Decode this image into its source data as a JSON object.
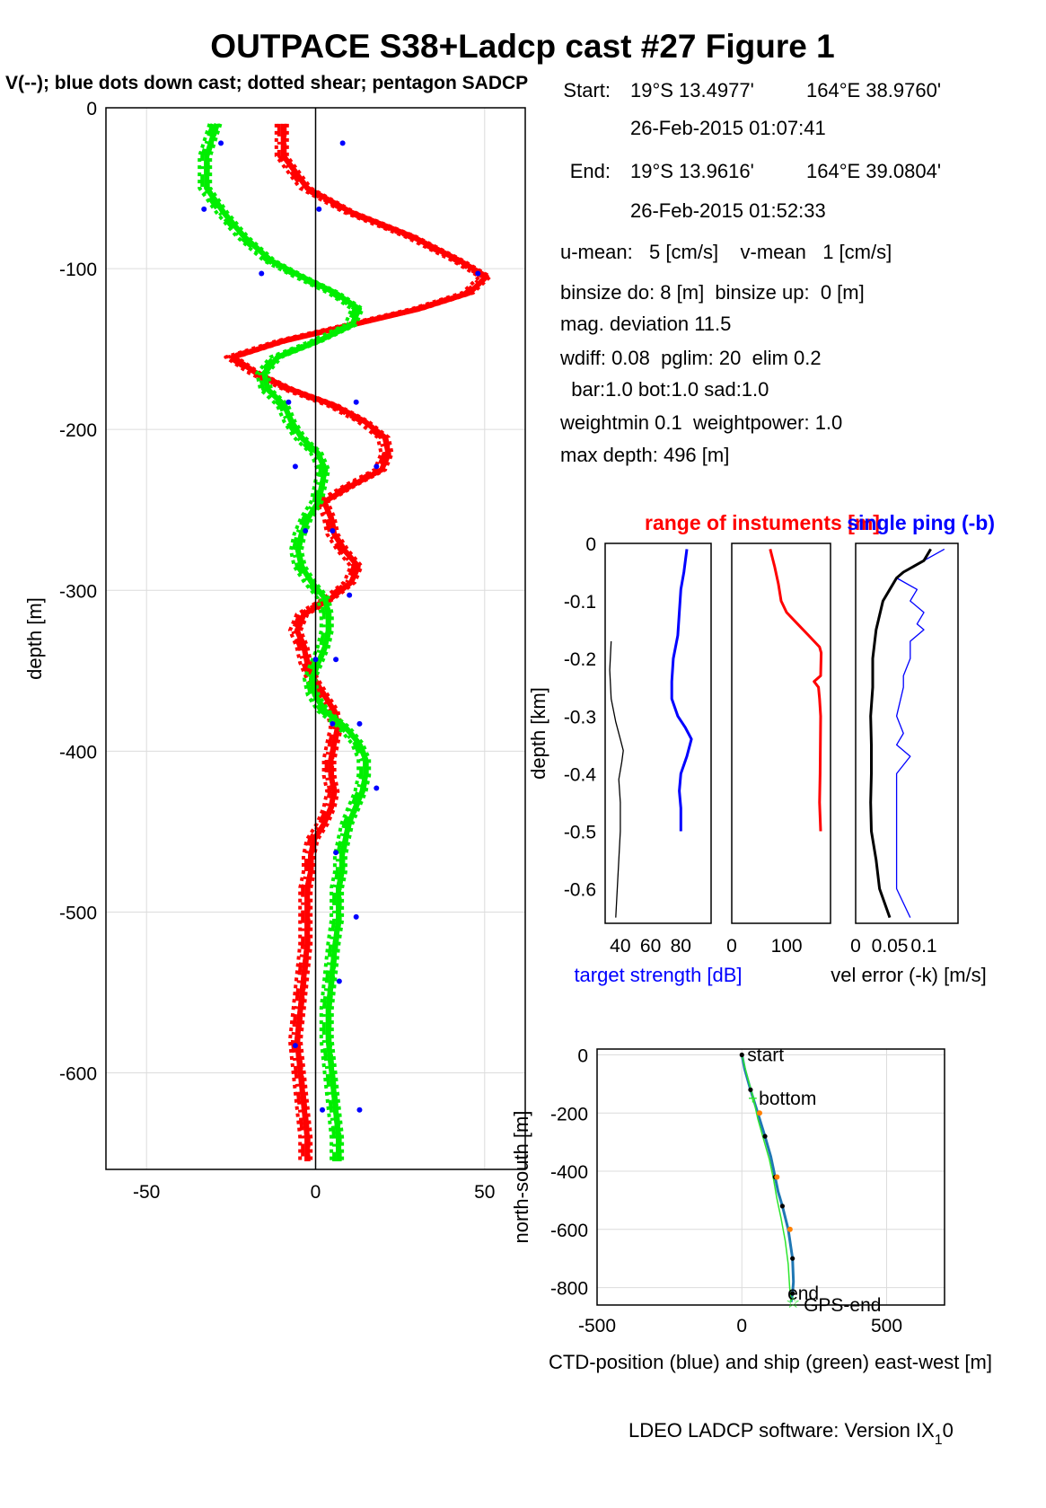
{
  "title": "OUTPACE S38+Ladcp cast #27  Figure 1",
  "subtitle": "V(--); blue dots down cast; dotted shear; pentagon SADCP",
  "info": {
    "start_label": "Start:",
    "start_lat": "19°S 13.4977'",
    "start_lon": "164°E 38.9760'",
    "start_time": "26-Feb-2015 01:07:41",
    "end_label": "End:",
    "end_lat": "19°S 13.9616'",
    "end_lon": "164°E 39.0804'",
    "end_time": "26-Feb-2015 01:52:33",
    "means": "u-mean:   5 [cm/s]    v-mean   1 [cm/s]",
    "binsize": "binsize do: 8 [m]  binsize up:  0 [m]",
    "magdev": "mag. deviation 11.5",
    "wdiff": "wdiff: 0.08  pglim: 20  elim 0.2",
    "bars": "  bar:1.0 bot:1.0 sad:1.0",
    "weights": "weightmin 0.1  weightpower: 1.0",
    "maxdepth": "max depth: 496 [m]"
  },
  "footer": "LDEO LADCP software: Version IX",
  "footer_sub": "1",
  "footer_tail": "0",
  "colors": {
    "red": "#ff0000",
    "green": "#00ee00",
    "blue": "#0000ff",
    "black": "#000000",
    "grid": "#dcdcdc",
    "ctd": "#1f77b4",
    "ship": "#2ee62e"
  },
  "chart_data": [
    {
      "type": "line",
      "id": "velocity-profile",
      "title": "V(--); blue dots down cast; dotted shear; pentagon SADCP",
      "xlabel": "",
      "ylabel": "depth [m]",
      "xlim": [
        -62,
        62
      ],
      "ylim": [
        -660,
        0
      ],
      "xticks": [
        -50,
        0,
        50
      ],
      "yticks": [
        0,
        -100,
        -200,
        -300,
        -400,
        -500,
        -600
      ],
      "grid": true,
      "series": [
        {
          "color": "red",
          "depth": [
            -10,
            -30,
            -50,
            -65,
            -80,
            -95,
            -105,
            -115,
            -125,
            -135,
            -145,
            -155,
            -165,
            -175,
            -185,
            -195,
            -205,
            -215,
            -225,
            -235,
            -245,
            -255,
            -265,
            -275,
            -285,
            -295,
            -305,
            -315,
            -325,
            -335,
            -345,
            -355,
            -365,
            -375,
            -385,
            -395,
            -405,
            -415,
            -425,
            -435,
            -445,
            -455,
            -465,
            -475,
            -485,
            -495,
            -505,
            -520,
            -540,
            -560,
            -580,
            -600,
            -620,
            -640,
            -655
          ],
          "values": [
            -10,
            -10,
            -3,
            10,
            28,
            42,
            50,
            45,
            30,
            10,
            -10,
            -25,
            -18,
            -8,
            5,
            14,
            20,
            21,
            19,
            10,
            2,
            4,
            5,
            8,
            12,
            10,
            4,
            -4,
            -6,
            -4,
            -3,
            -1,
            2,
            5,
            6,
            5,
            4,
            4,
            5,
            4,
            2,
            -1,
            -2,
            -2,
            -3,
            -3,
            -3,
            -3,
            -4,
            -5,
            -6,
            -5,
            -4,
            -3,
            -3
          ]
        },
        {
          "color": "green",
          "depth": [
            -10,
            -30,
            -50,
            -65,
            -80,
            -95,
            -105,
            -115,
            -125,
            -135,
            -145,
            -155,
            -165,
            -175,
            -185,
            -195,
            -205,
            -215,
            -225,
            -235,
            -245,
            -255,
            -265,
            -275,
            -285,
            -295,
            -305,
            -315,
            -325,
            -335,
            -345,
            -355,
            -365,
            -375,
            -385,
            -395,
            -405,
            -415,
            -425,
            -435,
            -445,
            -455,
            -465,
            -475,
            -485,
            -495,
            -505,
            -520,
            -540,
            -560,
            -580,
            -600,
            -620,
            -640,
            -655
          ],
          "values": [
            -30,
            -33,
            -33,
            -28,
            -22,
            -14,
            -5,
            5,
            12,
            10,
            0,
            -12,
            -16,
            -15,
            -10,
            -8,
            -5,
            0,
            2,
            1,
            0,
            -3,
            -5,
            -6,
            -5,
            -2,
            2,
            3,
            3,
            2,
            0,
            -2,
            -1,
            2,
            8,
            12,
            14,
            14,
            13,
            11,
            9,
            8,
            7,
            7,
            6,
            6,
            6,
            5,
            4,
            3,
            3,
            4,
            5,
            6,
            6
          ]
        }
      ],
      "dots": [
        {
          "v": -28,
          "depth": -22
        },
        {
          "v": 8,
          "depth": -22
        },
        {
          "v": -33,
          "depth": -63
        },
        {
          "v": 1,
          "depth": -63
        },
        {
          "v": -16,
          "depth": -103
        },
        {
          "v": 48,
          "depth": -103
        },
        {
          "v": -8,
          "depth": -183
        },
        {
          "v": 12,
          "depth": -183
        },
        {
          "v": -6,
          "depth": -223
        },
        {
          "v": 18,
          "depth": -223
        },
        {
          "v": -3,
          "depth": -263
        },
        {
          "v": 5,
          "depth": -263
        },
        {
          "v": 10,
          "depth": -303
        },
        {
          "v": 6,
          "depth": -343
        },
        {
          "v": 0,
          "depth": -343
        },
        {
          "v": 5,
          "depth": -383
        },
        {
          "v": 13,
          "depth": -383
        },
        {
          "v": 18,
          "depth": -423
        },
        {
          "v": 6,
          "depth": -463
        },
        {
          "v": 12,
          "depth": -503
        },
        {
          "v": 7,
          "depth": -543
        },
        {
          "v": -6,
          "depth": -583
        },
        {
          "v": 13,
          "depth": -623
        },
        {
          "v": 2,
          "depth": -623
        }
      ]
    },
    {
      "type": "line",
      "id": "target-strength",
      "title": "range of instuments [m]",
      "xlabel": "target strength [dB]",
      "ylabel": "depth [km]",
      "xlim": [
        30,
        100
      ],
      "ylim": [
        -0.66,
        0
      ],
      "xticks": [
        40,
        60,
        80
      ],
      "yticks": [
        0,
        -0.1,
        -0.2,
        -0.3,
        -0.4,
        -0.5,
        -0.6
      ],
      "series": [
        {
          "name": "target strength",
          "color": "blue",
          "depth": [
            -0.01,
            -0.05,
            -0.08,
            -0.12,
            -0.16,
            -0.2,
            -0.24,
            -0.27,
            -0.3,
            -0.32,
            -0.34,
            -0.37,
            -0.4,
            -0.43,
            -0.46,
            -0.5
          ],
          "values": [
            84,
            82,
            80,
            79,
            78,
            75,
            74,
            74,
            78,
            83,
            87,
            84,
            80,
            79,
            80,
            80
          ]
        },
        {
          "name": "range",
          "color": "black",
          "depth": [
            -0.17,
            -0.22,
            -0.27,
            -0.31,
            -0.34,
            -0.36,
            -0.38,
            -0.41,
            -0.45,
            -0.5,
            -0.55,
            -0.6,
            -0.65
          ],
          "values": [
            34,
            33,
            34,
            37,
            40,
            42,
            41,
            39,
            40,
            40,
            39,
            38,
            37
          ]
        }
      ]
    },
    {
      "type": "line",
      "id": "range",
      "xlabel": "",
      "xlim": [
        0,
        180
      ],
      "ylim": [
        -0.66,
        0
      ],
      "xticks": [
        0,
        100
      ],
      "series": [
        {
          "color": "red",
          "depth": [
            -0.01,
            -0.04,
            -0.07,
            -0.1,
            -0.12,
            -0.14,
            -0.16,
            -0.18,
            -0.19,
            -0.23,
            -0.24,
            -0.25,
            -0.27,
            -0.3,
            -0.4,
            -0.45,
            -0.5
          ],
          "values": [
            70,
            78,
            85,
            90,
            100,
            120,
            140,
            160,
            163,
            162,
            150,
            158,
            160,
            162,
            161,
            160,
            162
          ]
        }
      ]
    },
    {
      "type": "line",
      "id": "vel-error",
      "title": "single ping (-b)",
      "xlabel": "vel error (-k) [m/s]",
      "xlim": [
        0,
        0.15
      ],
      "ylim": [
        -0.66,
        0
      ],
      "xticks": [
        0,
        0.05,
        0.1
      ],
      "xticklabels": [
        "0",
        "0.05",
        "0.1"
      ],
      "series": [
        {
          "name": "single ping",
          "color": "blue",
          "depth": [
            -0.01,
            -0.03,
            -0.05,
            -0.06,
            -0.08,
            -0.1,
            -0.12,
            -0.14,
            -0.15,
            -0.17,
            -0.2,
            -0.23,
            -0.25,
            -0.3,
            -0.33,
            -0.35,
            -0.37,
            -0.4,
            -0.45,
            -0.5,
            -0.55,
            -0.6,
            -0.65
          ],
          "values": [
            0.13,
            0.1,
            0.07,
            0.06,
            0.09,
            0.08,
            0.1,
            0.09,
            0.1,
            0.08,
            0.08,
            0.07,
            0.07,
            0.06,
            0.07,
            0.06,
            0.08,
            0.06,
            0.06,
            0.06,
            0.06,
            0.06,
            0.08
          ]
        },
        {
          "name": "vel error",
          "color": "black",
          "depth": [
            -0.01,
            -0.03,
            -0.05,
            -0.06,
            -0.08,
            -0.1,
            -0.15,
            -0.2,
            -0.25,
            -0.3,
            -0.35,
            -0.4,
            -0.45,
            -0.5,
            -0.55,
            -0.6,
            -0.65
          ],
          "values": [
            0.11,
            0.1,
            0.07,
            0.06,
            0.05,
            0.04,
            0.03,
            0.025,
            0.025,
            0.022,
            0.023,
            0.023,
            0.022,
            0.023,
            0.03,
            0.035,
            0.05
          ]
        }
      ]
    },
    {
      "type": "line",
      "id": "position",
      "xlabel": "CTD-position (blue) and ship (green) east-west [m]",
      "ylabel": "north-south [m]",
      "xlim": [
        -500,
        700
      ],
      "ylim": [
        -860,
        20
      ],
      "xticks": [
        -500,
        0,
        500
      ],
      "yticks": [
        0,
        -200,
        -400,
        -600,
        -800
      ],
      "annotations": [
        "start",
        "bottom",
        "end",
        "GPS-end"
      ],
      "series": [
        {
          "name": "CTD",
          "color": "ctd",
          "x": [
            0,
            10,
            30,
            55,
            80,
            100,
            115,
            125,
            140,
            160,
            175,
            178,
            175,
            170
          ],
          "y": [
            0,
            -50,
            -120,
            -200,
            -280,
            -350,
            -420,
            -470,
            -520,
            -600,
            -700,
            -780,
            -820,
            -850
          ]
        },
        {
          "name": "ship",
          "color": "ship",
          "x": [
            0,
            15,
            40,
            55,
            75,
            95,
            110,
            120,
            135,
            150,
            160,
            165,
            170
          ],
          "y": [
            0,
            -60,
            -150,
            -220,
            -290,
            -360,
            -430,
            -490,
            -560,
            -640,
            -720,
            -800,
            -850
          ]
        }
      ]
    }
  ]
}
